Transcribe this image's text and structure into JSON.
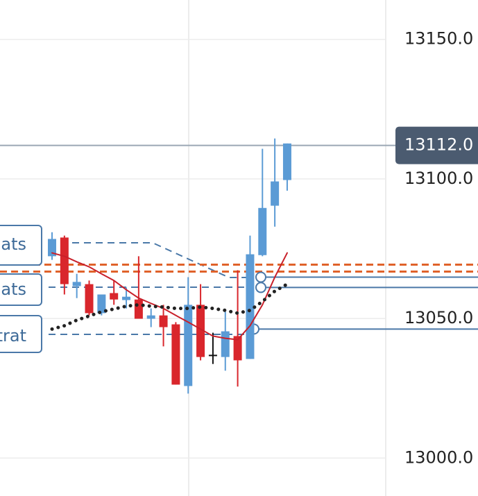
{
  "chart_data": {
    "type": "candlestick",
    "ylim": [
      12986.4,
      13164.1
    ],
    "yticks": [
      {
        "value": 13000,
        "label": "13000.0"
      },
      {
        "value": 13050,
        "label": "13050.0"
      },
      {
        "value": 13100,
        "label": "13100.0"
      },
      {
        "value": 13150,
        "label": "13150.0"
      }
    ],
    "grid": true,
    "up_color": "#5b9bd5",
    "down_color": "#d9262c",
    "doji_color": "#111111",
    "candles": [
      {
        "open": 13072.3,
        "high": 13080.9,
        "low": 13071.0,
        "close": 13078.5
      },
      {
        "open": 13079.0,
        "high": 13079.7,
        "low": 13058.6,
        "close": 13062.3
      },
      {
        "open": 13061.6,
        "high": 13066.0,
        "low": 13057.3,
        "close": 13063.1
      },
      {
        "open": 13062.3,
        "high": 13063.6,
        "low": 13051.1,
        "close": 13051.9
      },
      {
        "open": 13051.9,
        "high": 13058.6,
        "low": 13051.1,
        "close": 13058.6
      },
      {
        "open": 13059.1,
        "high": 13063.6,
        "low": 13054.9,
        "close": 13056.8
      },
      {
        "open": 13056.6,
        "high": 13061.1,
        "low": 13053.6,
        "close": 13057.8
      },
      {
        "open": 13056.8,
        "high": 13072.3,
        "low": 13049.9,
        "close": 13049.9
      },
      {
        "open": 13049.9,
        "high": 13053.6,
        "low": 13046.9,
        "close": 13051.1
      },
      {
        "open": 13051.1,
        "high": 13054.9,
        "low": 13040.0,
        "close": 13046.9
      },
      {
        "open": 13047.9,
        "high": 13048.7,
        "low": 13026.3,
        "close": 13026.3
      },
      {
        "open": 13025.8,
        "high": 13064.8,
        "low": 13023.1,
        "close": 13054.9
      },
      {
        "open": 13054.9,
        "high": 13062.3,
        "low": 13035.0,
        "close": 13036.2
      },
      {
        "open": 13037.0,
        "high": 13044.9,
        "low": 13033.7,
        "close": 13037.0
      },
      {
        "open": 13036.2,
        "high": 13052.4,
        "low": 13031.3,
        "close": 13045.4
      },
      {
        "open": 13043.7,
        "high": 13067.3,
        "low": 13025.6,
        "close": 13035.0
      },
      {
        "open": 13035.5,
        "high": 13079.7,
        "low": 13035.5,
        "close": 13073.0
      },
      {
        "open": 13072.7,
        "high": 13110.8,
        "low": 13072.3,
        "close": 13089.6
      },
      {
        "open": 13090.4,
        "high": 13114.5,
        "low": 13082.9,
        "close": 13099.1
      },
      {
        "open": 13099.6,
        "high": 13112.7,
        "low": 13095.8,
        "close": 13112.7
      }
    ],
    "lines": [
      {
        "color": "#c8202a",
        "style": "solid",
        "values": [
          13073.5,
          13072.3,
          13070.3,
          13068.5,
          13066.0,
          13063.6,
          13060.3,
          13057.3,
          13055.4,
          13053.6,
          13051.1,
          13048.7,
          13046.2,
          13043.7,
          13042.9,
          13042.4,
          13047.4,
          13054.9,
          13064.8,
          13073.5
        ]
      },
      {
        "color": "#222222",
        "style": "dotted",
        "values": [
          13046.2,
          13047.4,
          13049.4,
          13050.9,
          13052.4,
          13053.4,
          13054.4,
          13054.9,
          13054.4,
          13054.1,
          13053.6,
          13053.6,
          13054.1,
          13053.6,
          13052.9,
          13051.9,
          13052.9,
          13056.1,
          13059.8,
          13062.3
        ]
      }
    ],
    "levels": [
      {
        "value": 13069.3,
        "color": "#e0622a",
        "style": "dashed"
      },
      {
        "value": 13066.8,
        "color": "#e0622a",
        "style": "dashed"
      },
      {
        "value": 13064.8,
        "color": "#4a78a8",
        "style": "solid"
      },
      {
        "value": 13061.1,
        "color": "#4a78a8",
        "style": "solid"
      },
      {
        "value": 13046.2,
        "color": "#4a78a8",
        "style": "solid"
      }
    ],
    "current_price": {
      "value": 13112,
      "label": "13112.0"
    },
    "annotations": [
      "ats",
      "ats",
      "trat"
    ]
  }
}
